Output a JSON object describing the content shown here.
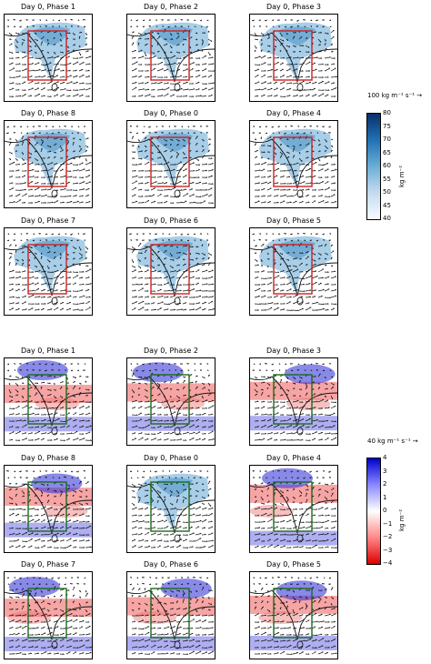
{
  "top": {
    "panels": [
      {
        "title": "Day 0, Phase 1"
      },
      {
        "title": "Day 0, Phase 2"
      },
      {
        "title": "Day 0, Phase 3"
      },
      {
        "title": "Day 0, Phase 8"
      },
      {
        "title": "Day 0, Phase 0"
      },
      {
        "title": "Day 0, Phase 4"
      },
      {
        "title": "Day 0, Phase 7"
      },
      {
        "title": "Day 0, Phase 6"
      },
      {
        "title": "Day 0, Phase 5"
      }
    ],
    "vector_scale_label": "100 kg m⁻¹ s⁻¹ →",
    "colorbar": {
      "unit": "kg m⁻²",
      "ticks": [
        "80",
        "75",
        "70",
        "65",
        "60",
        "55",
        "50",
        "45",
        "40"
      ],
      "colors": [
        "#08306b",
        "#2171b5",
        "#6baed6",
        "#c6dbef",
        "#f7fbff"
      ]
    },
    "box_color": "#cc2222"
  },
  "bottom": {
    "panels": [
      {
        "title": "Day 0, Phase 1",
        "style": "anomaly"
      },
      {
        "title": "Day 0, Phase 2",
        "style": "anomaly"
      },
      {
        "title": "Day 0, Phase 3",
        "style": "anomaly"
      },
      {
        "title": "Day 0, Phase 8",
        "style": "anomaly"
      },
      {
        "title": "Day 0, Phase 0",
        "style": "mean"
      },
      {
        "title": "Day 0, Phase 4",
        "style": "anomaly"
      },
      {
        "title": "Day 0, Phase 7",
        "style": "anomaly"
      },
      {
        "title": "Day 0, Phase 6",
        "style": "anomaly"
      },
      {
        "title": "Day 0, Phase 5",
        "style": "anomaly"
      }
    ],
    "vector_scale_label": "40 kg m⁻¹ s⁻¹ →",
    "colorbar": {
      "unit": "kg m⁻²",
      "ticks": [
        "4",
        "3",
        "2",
        "1",
        "0",
        "−1",
        "−2",
        "−3",
        "−4"
      ],
      "colors": [
        "#0000cc",
        "#8888ff",
        "#ffffff",
        "#ff8888",
        "#dd0000"
      ]
    },
    "box_color": "#1a6b1a"
  }
}
